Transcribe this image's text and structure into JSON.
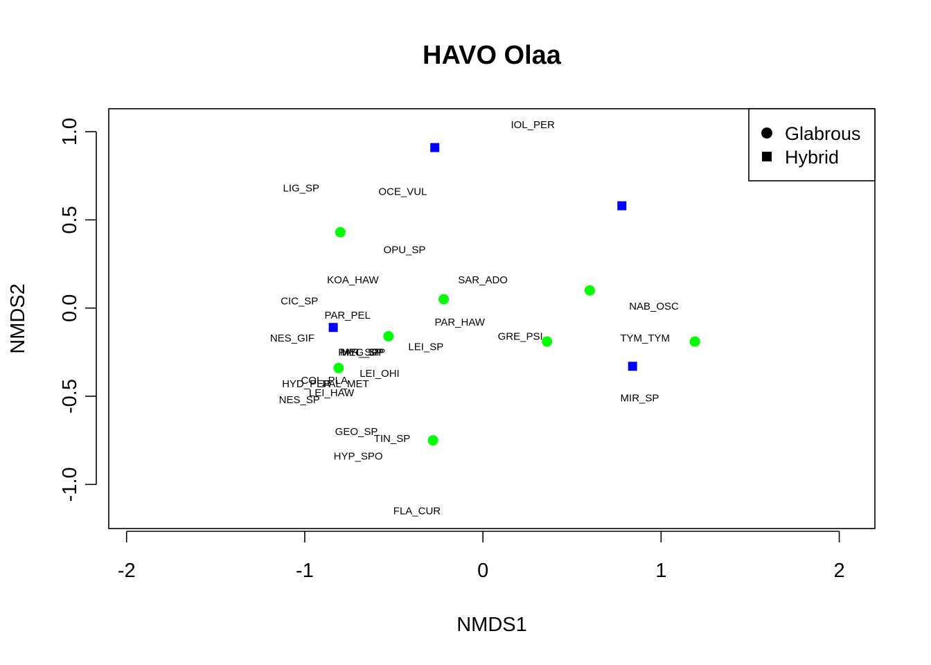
{
  "chart_data": {
    "type": "scatter",
    "title": "HAVO Olaa",
    "xlabel": "NMDS1",
    "ylabel": "NMDS2",
    "xlim": [
      -2.1,
      2.2
    ],
    "ylim": [
      -1.25,
      1.13
    ],
    "x_ticks": [
      "-2",
      "-1",
      "0",
      "1",
      "2"
    ],
    "y_ticks": [
      "-1.0",
      "-0.5",
      "0.0",
      "0.5",
      "1.0"
    ],
    "legend": {
      "position": "top-right",
      "entries": [
        {
          "name": "Glabrous",
          "shape": "circle"
        },
        {
          "name": "Hybrid",
          "shape": "square"
        }
      ]
    },
    "series": [
      {
        "name": "Glabrous",
        "shape": "circle",
        "color": "#00ff00",
        "points": [
          {
            "x": -0.8,
            "y": 0.43
          },
          {
            "x": -0.22,
            "y": 0.05
          },
          {
            "x": 0.6,
            "y": 0.1
          },
          {
            "x": -0.53,
            "y": -0.16
          },
          {
            "x": 0.36,
            "y": -0.19
          },
          {
            "x": 1.19,
            "y": -0.19
          },
          {
            "x": -0.81,
            "y": -0.34
          },
          {
            "x": -0.28,
            "y": -0.75
          }
        ]
      },
      {
        "name": "Hybrid",
        "shape": "square",
        "color": "#0000ff",
        "points": [
          {
            "x": -0.27,
            "y": 0.91
          },
          {
            "x": 0.78,
            "y": 0.58
          },
          {
            "x": -0.84,
            "y": -0.11
          },
          {
            "x": 0.84,
            "y": -0.33
          }
        ]
      }
    ],
    "species_labels": [
      {
        "text": "IOL_PER",
        "x": 0.28,
        "y": 1.04
      },
      {
        "text": "LIG_SP",
        "x": -1.02,
        "y": 0.68
      },
      {
        "text": "OCE_VUL",
        "x": -0.45,
        "y": 0.66
      },
      {
        "text": "OPU_SP",
        "x": -0.44,
        "y": 0.33
      },
      {
        "text": "KOA_HAW",
        "x": -0.73,
        "y": 0.16
      },
      {
        "text": "SAR_ADO",
        "x": 0.0,
        "y": 0.16
      },
      {
        "text": "CIC_SP",
        "x": -1.03,
        "y": 0.04
      },
      {
        "text": "NAB_OSC",
        "x": 0.96,
        "y": 0.01
      },
      {
        "text": "PAR_PEL",
        "x": -0.76,
        "y": -0.04
      },
      {
        "text": "PAR_HAW",
        "x": -0.13,
        "y": -0.08
      },
      {
        "text": "GRE_PSI",
        "x": 0.21,
        "y": -0.16
      },
      {
        "text": "TYM_TYM",
        "x": 0.91,
        "y": -0.17
      },
      {
        "text": "NES_GIF",
        "x": -1.07,
        "y": -0.17
      },
      {
        "text": "LEI_SP",
        "x": -0.32,
        "y": -0.22
      },
      {
        "text": "PAR_SPP",
        "x": -0.68,
        "y": -0.25
      },
      {
        "text": "MEG_SP",
        "x": -0.68,
        "y": -0.25
      },
      {
        "text": "HYL_SP",
        "x": -0.68,
        "y": -0.25
      },
      {
        "text": "LEI_OHI",
        "x": -0.58,
        "y": -0.37
      },
      {
        "text": "COL_PLA",
        "x": -0.89,
        "y": -0.41
      },
      {
        "text": "HYD_PER",
        "x": -0.99,
        "y": -0.43
      },
      {
        "text": "PAL_MET",
        "x": -0.77,
        "y": -0.43
      },
      {
        "text": "LEI_HAW",
        "x": -0.85,
        "y": -0.48
      },
      {
        "text": "NES_SP",
        "x": -1.03,
        "y": -0.52
      },
      {
        "text": "MIR_SP",
        "x": 0.88,
        "y": -0.51
      },
      {
        "text": "GEO_SP",
        "x": -0.71,
        "y": -0.7
      },
      {
        "text": "TIN_SP",
        "x": -0.51,
        "y": -0.74
      },
      {
        "text": "HYP_SPO",
        "x": -0.7,
        "y": -0.84
      },
      {
        "text": "FLA_CUR",
        "x": -0.37,
        "y": -1.15
      }
    ]
  }
}
